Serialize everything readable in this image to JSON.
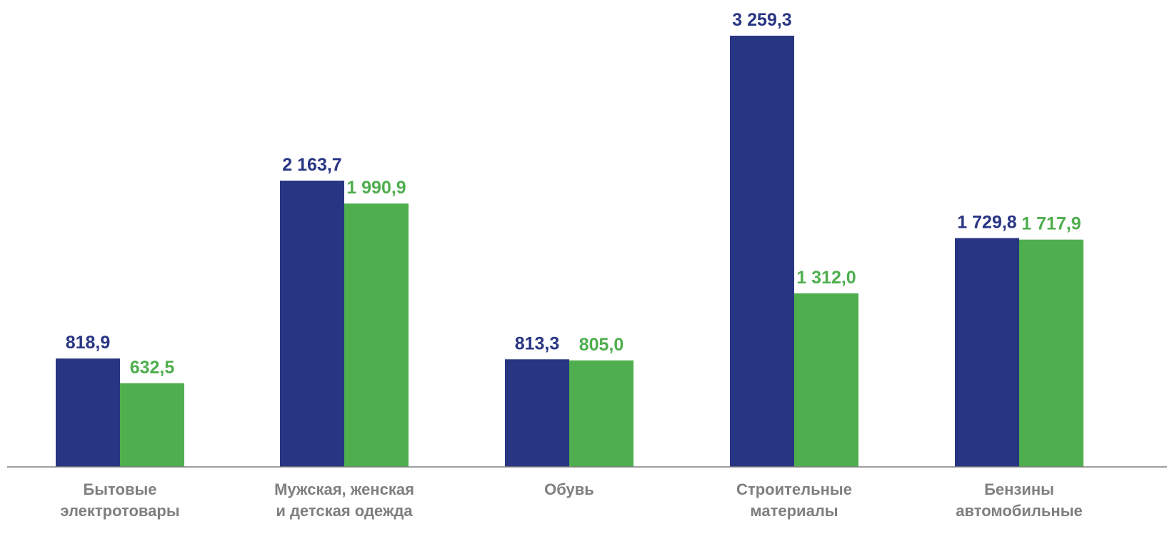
{
  "chart_data": {
    "type": "bar",
    "categories": [
      [
        "Бытовые",
        "электротовары"
      ],
      [
        "Мужская, женская",
        "и детская одежда"
      ],
      [
        "Обувь"
      ],
      [
        "Строительные",
        "материалы"
      ],
      [
        "Бензины",
        "автомобильные"
      ]
    ],
    "series": [
      {
        "color": "#283583",
        "values": [
          818.9,
          2163.7,
          813.3,
          3259.3,
          1729.8
        ],
        "labels": [
          "818,9",
          "2 163,7",
          "813,3",
          "3 259,3",
          "1 729,8"
        ]
      },
      {
        "color": "#4fae4e",
        "values": [
          632.5,
          1990.9,
          805.0,
          1312.0,
          1717.9
        ],
        "labels": [
          "632,5",
          "1 990,9",
          "805,0",
          "1 312,0",
          "1 717,9"
        ]
      }
    ],
    "ylim": [
      0,
      3259.3
    ],
    "grid": false,
    "legend": "none",
    "axis_color": "#7f7f7f"
  }
}
